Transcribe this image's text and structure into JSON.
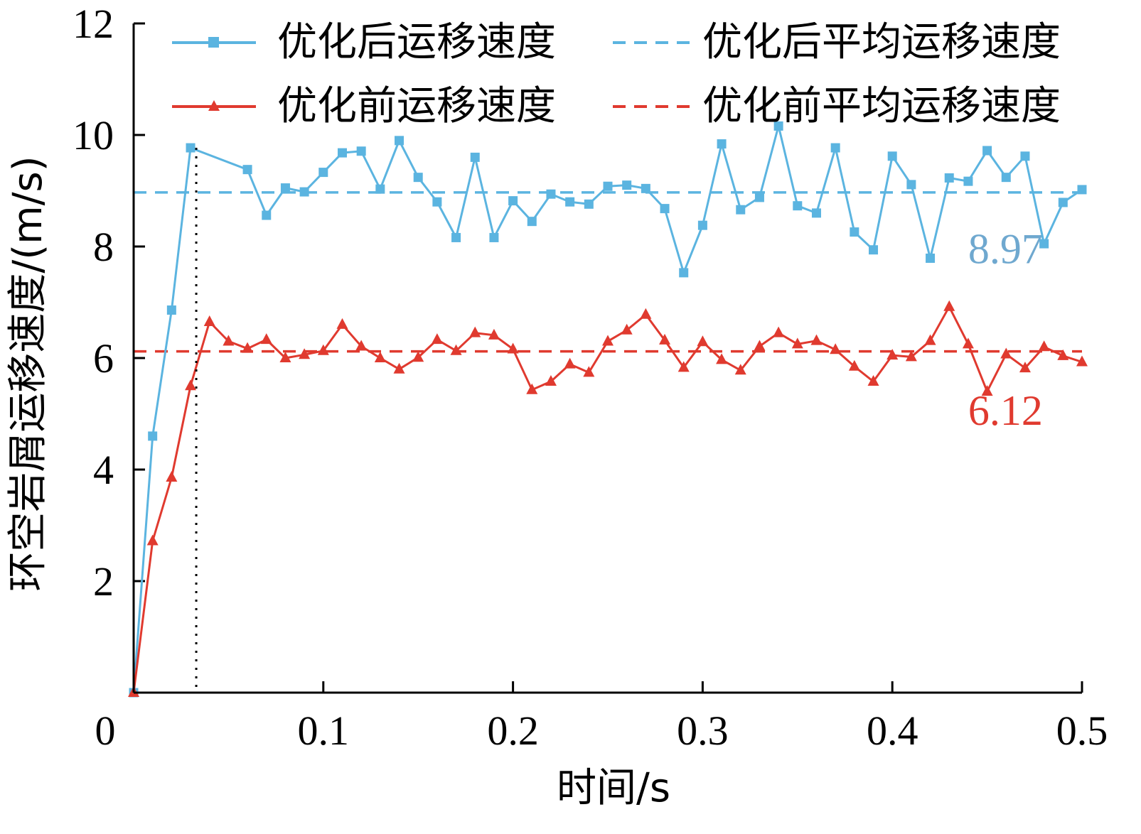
{
  "chart_data": {
    "type": "line",
    "xlabel": "时间/s",
    "ylabel": "环空岩屑运移速度/(m/s)",
    "xlim": [
      0,
      0.5
    ],
    "ylim": [
      0,
      12
    ],
    "x_ticks": [
      0,
      0.1,
      0.2,
      0.3,
      0.4,
      0.5
    ],
    "x_tick_labels": [
      "0",
      "0.1",
      "0.2",
      "0.3",
      "0.4",
      "0.5"
    ],
    "y_ticks": [
      2,
      4,
      6,
      8,
      10,
      12
    ],
    "y_tick_labels": [
      "2",
      "4",
      "6",
      "8",
      "10",
      "12"
    ],
    "grid": false,
    "legend_position": "top-right",
    "marker_line_x": 0.033,
    "series": [
      {
        "name": "优化后运移速度",
        "color": "#5bb4e0",
        "marker": "square",
        "x": [
          0,
          0.01,
          0.02,
          0.03,
          0.06,
          0.07,
          0.08,
          0.09,
          0.1,
          0.11,
          0.12,
          0.13,
          0.14,
          0.15,
          0.16,
          0.17,
          0.18,
          0.19,
          0.2,
          0.21,
          0.22,
          0.23,
          0.24,
          0.25,
          0.26,
          0.27,
          0.28,
          0.29,
          0.3,
          0.31,
          0.32,
          0.33,
          0.34,
          0.35,
          0.36,
          0.37,
          0.38,
          0.39,
          0.4,
          0.41,
          0.42,
          0.43,
          0.44,
          0.45,
          0.46,
          0.47,
          0.48,
          0.49,
          0.5
        ],
        "y": [
          0,
          4.6,
          6.86,
          9.77,
          9.38,
          8.56,
          9.05,
          8.98,
          9.33,
          9.68,
          9.71,
          9.03,
          9.9,
          9.24,
          8.8,
          8.16,
          9.6,
          8.16,
          8.82,
          8.45,
          8.94,
          8.8,
          8.76,
          9.08,
          9.1,
          9.04,
          8.68,
          7.53,
          8.38,
          9.84,
          8.66,
          8.88,
          10.16,
          8.73,
          8.6,
          9.77,
          8.26,
          7.94,
          9.62,
          9.11,
          7.79,
          9.23,
          9.17,
          9.72,
          9.24,
          9.62,
          8.05,
          8.79,
          9.02
        ]
      },
      {
        "name": "优化前运移速度",
        "color": "#e03a2f",
        "marker": "triangle",
        "x": [
          0,
          0.01,
          0.02,
          0.03,
          0.04,
          0.05,
          0.06,
          0.07,
          0.08,
          0.09,
          0.1,
          0.11,
          0.12,
          0.13,
          0.14,
          0.15,
          0.16,
          0.17,
          0.18,
          0.19,
          0.2,
          0.21,
          0.22,
          0.23,
          0.24,
          0.25,
          0.26,
          0.27,
          0.28,
          0.29,
          0.3,
          0.31,
          0.32,
          0.33,
          0.34,
          0.35,
          0.36,
          0.37,
          0.38,
          0.39,
          0.4,
          0.41,
          0.42,
          0.43,
          0.44,
          0.45,
          0.46,
          0.47,
          0.48,
          0.49,
          0.5
        ],
        "y": [
          0,
          2.72,
          3.86,
          5.5,
          6.65,
          6.3,
          6.17,
          6.33,
          6.0,
          6.06,
          6.13,
          6.6,
          6.21,
          6.0,
          5.8,
          6.01,
          6.33,
          6.13,
          6.45,
          6.41,
          6.16,
          5.43,
          5.58,
          5.89,
          5.74,
          6.3,
          6.5,
          6.78,
          6.32,
          5.83,
          6.29,
          5.97,
          5.78,
          6.21,
          6.45,
          6.25,
          6.31,
          6.15,
          5.85,
          5.58,
          6.05,
          6.02,
          6.31,
          6.92,
          6.25,
          5.4,
          6.07,
          5.82,
          6.2,
          6.04,
          5.93
        ]
      },
      {
        "name": "优化后平均运移速度",
        "color": "#5bb4e0",
        "style": "dashed",
        "y": 8.97
      },
      {
        "name": "优化前平均运移速度",
        "color": "#e03a2f",
        "style": "dashed",
        "y": 6.12
      }
    ],
    "annotations": [
      {
        "text": "8.97",
        "color": "#6fa8cf",
        "x": 0.44,
        "y": 7.7
      },
      {
        "text": "6.12",
        "color": "#e03a2f",
        "x": 0.44,
        "y": 4.8
      }
    ]
  }
}
